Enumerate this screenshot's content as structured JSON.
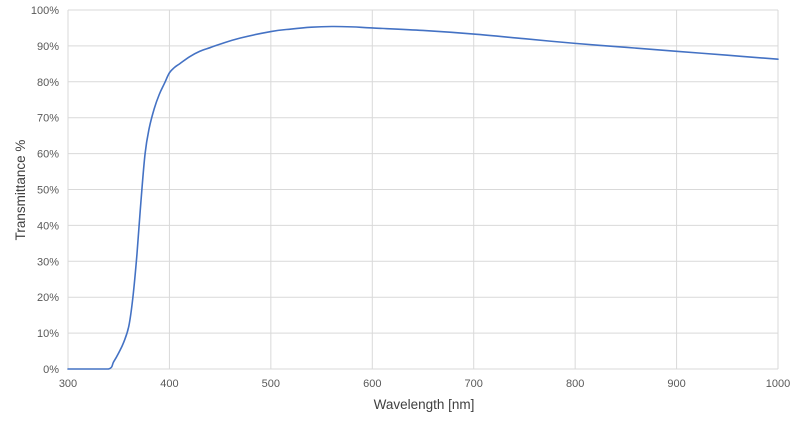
{
  "chart_data": {
    "type": "line",
    "title": "",
    "xlabel": "Wavelength [nm]",
    "ylabel": "Transmittance %",
    "xlim": [
      300,
      1000
    ],
    "ylim": [
      0,
      100
    ],
    "xticks": [
      "300",
      "400",
      "500",
      "600",
      "700",
      "800",
      "900",
      "1000"
    ],
    "yticks": [
      "0%",
      "10%",
      "20%",
      "30%",
      "40%",
      "50%",
      "60%",
      "70%",
      "80%",
      "90%",
      "100%"
    ],
    "grid": true,
    "legend": "none",
    "series": [
      {
        "color": "#4472C4",
        "x": [
          300,
          320,
          340,
          345,
          350,
          355,
          360,
          364,
          368,
          372,
          376,
          380,
          385,
          390,
          395,
          400,
          405,
          410,
          420,
          430,
          440,
          450,
          470,
          500,
          520,
          540,
          560,
          580,
          600,
          650,
          700,
          750,
          800,
          850,
          900,
          950,
          1000
        ],
        "y": [
          0,
          0,
          0,
          2,
          4.5,
          7.5,
          12,
          20,
          32,
          47,
          60,
          67,
          72.5,
          76.5,
          79.5,
          82.5,
          84,
          85,
          87,
          88.5,
          89.5,
          90.5,
          92.2,
          94,
          94.7,
          95.2,
          95.4,
          95.3,
          95,
          94.3,
          93.3,
          92,
          90.7,
          89.6,
          88.5,
          87.4,
          86.3
        ]
      }
    ]
  }
}
